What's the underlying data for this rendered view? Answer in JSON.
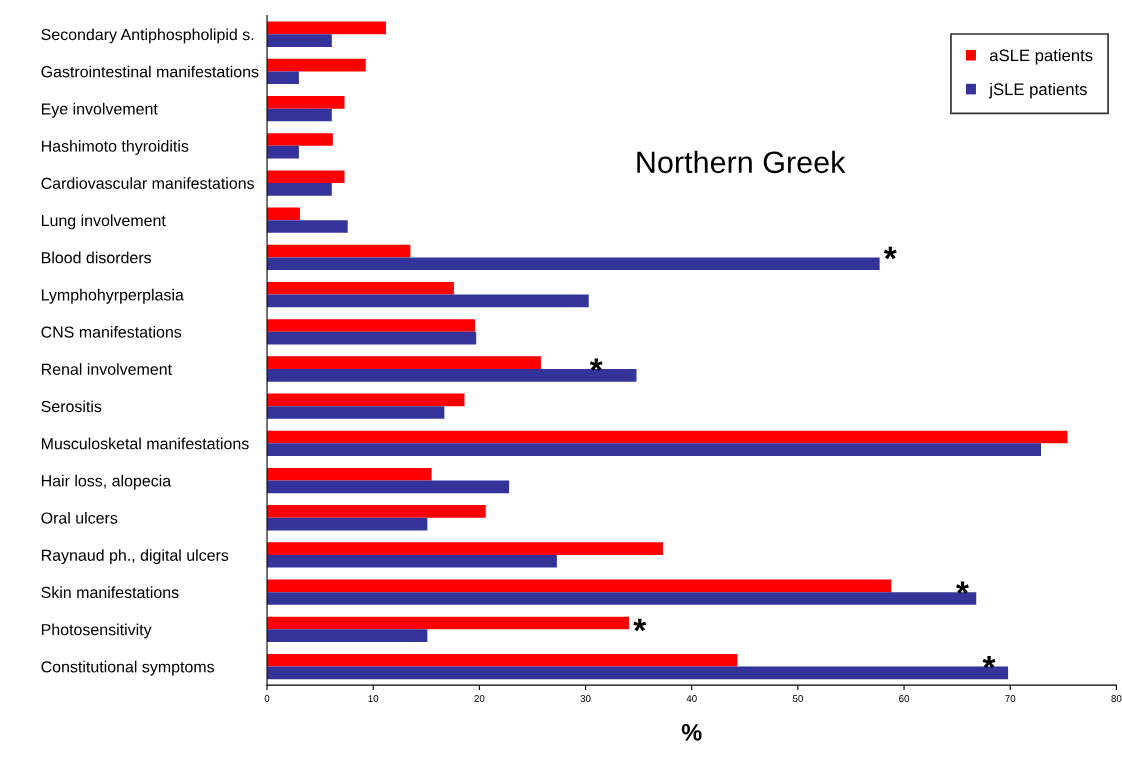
{
  "chart_data": {
    "type": "bar",
    "orientation": "horizontal",
    "xlabel": "%",
    "categories": [
      "Secondary Antiphospholipid s.",
      "Gastrointestinal manifestations",
      "Eye involvement",
      "Hashimoto thyroiditis",
      "Cardiovascular manifestations",
      "Lung involvement",
      "Blood disorders",
      "Lymphohyrperplasia",
      "CNS manifestations",
      "Renal involvement",
      "Serositis",
      "Musculosketal manifestations",
      "Hair loss, alopecia",
      "Oral ulcers",
      "Raynaud ph., digital ulcers",
      "Skin manifestations",
      "Photosensitivity",
      "Constitutional symptoms"
    ],
    "series": [
      {
        "name": "aSLE patients",
        "color": "#ff0000",
        "values": [
          11.2,
          9.3,
          7.3,
          6.2,
          7.3,
          3.1,
          13.5,
          17.6,
          19.6,
          25.8,
          18.6,
          75.4,
          15.5,
          20.6,
          37.3,
          58.8,
          34.1,
          44.3
        ]
      },
      {
        "name": "jSLE patients",
        "color": "#333399",
        "values": [
          6.1,
          3.0,
          6.1,
          3.0,
          6.1,
          7.6,
          57.7,
          30.3,
          19.7,
          34.8,
          16.7,
          72.9,
          22.8,
          15.1,
          27.3,
          66.8,
          15.1,
          69.8
        ]
      }
    ],
    "xlim": [
      0,
      80
    ],
    "xticks": [
      0,
      10,
      20,
      30,
      40,
      50,
      60,
      70,
      80
    ],
    "grid": false,
    "legend": "top right",
    "annotations": [
      "Northern Greek",
      {
        "text": "*",
        "x": 57.7,
        "y": "Blood disorders"
      },
      {
        "text": "*",
        "x": 30,
        "y": "Renal involvement"
      },
      {
        "text": "*",
        "x": 64.5,
        "y": "Skin manifestations"
      },
      {
        "text": "*",
        "x": 34.1,
        "y": "Photosensitivity"
      },
      {
        "text": "*",
        "x": 67,
        "y": "Constitutional symptoms"
      }
    ]
  }
}
